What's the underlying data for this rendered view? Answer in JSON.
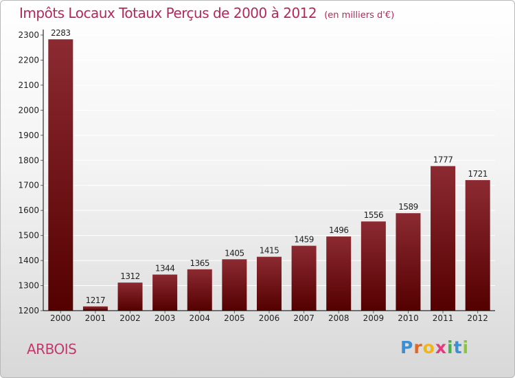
{
  "header": {
    "title": "Impôts Locaux Totaux Perçus de 2000 à 2012",
    "unit": "(en milliers d'€)"
  },
  "place": "ARBOIS",
  "logo": {
    "letters": [
      "P",
      "r",
      "o",
      "x",
      "i",
      "t",
      "i"
    ],
    "colors": [
      "#3a8fd6",
      "#e0662a",
      "#f2b514",
      "#e23b7e",
      "#4ab04a",
      "#3a8fd6",
      "#8bc43f"
    ]
  },
  "colors": {
    "bar_top": "#8c2a32",
    "bar_bottom": "#540000",
    "axis": "#000000",
    "grid": "#ffffff"
  },
  "chart_data": {
    "type": "bar",
    "categories": [
      "2000",
      "2001",
      "2002",
      "2003",
      "2004",
      "2005",
      "2006",
      "2007",
      "2008",
      "2009",
      "2010",
      "2011",
      "2012"
    ],
    "values": [
      2283,
      1217,
      1312,
      1344,
      1365,
      1405,
      1415,
      1459,
      1496,
      1556,
      1589,
      1777,
      1721
    ],
    "yticks": [
      "1200",
      "1300",
      "1400",
      "1500",
      "1600",
      "1700",
      "1800",
      "1900",
      "2000",
      "2100",
      "2200",
      "2300"
    ],
    "ylim": [
      1200,
      2300
    ],
    "grid": true
  }
}
